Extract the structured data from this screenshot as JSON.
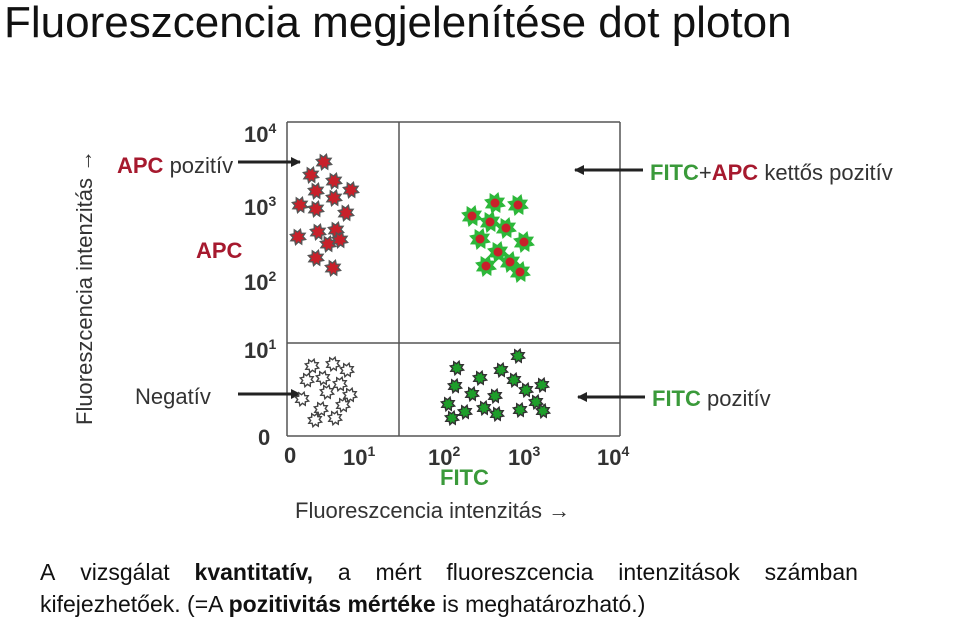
{
  "title": "Fluoreszcencia megjelenítése dot ploton",
  "y_axis_title": "Fluoreszcencia intenzitás →",
  "x_axis_title": "Fluoreszcencia intenzitás →",
  "x_axis_label": "FITC",
  "y_axis_label": "APC",
  "y_ticks": [
    {
      "base": "10",
      "exp": "4"
    },
    {
      "base": "10",
      "exp": "3"
    },
    {
      "base": "10",
      "exp": "2"
    },
    {
      "base": "10",
      "exp": "1"
    },
    {
      "base": "0",
      "exp": ""
    }
  ],
  "x_ticks": [
    {
      "base": "0",
      "exp": ""
    },
    {
      "base": "10",
      "exp": "1"
    },
    {
      "base": "10",
      "exp": "2"
    },
    {
      "base": "10",
      "exp": "3"
    },
    {
      "base": "10",
      "exp": "4"
    }
  ],
  "annotations": {
    "apc_positive": {
      "bold": "APC",
      "rest": " pozitív"
    },
    "negative": "Negatív",
    "double_positive": {
      "fitc": "FITC",
      "plus": "+",
      "apc": "APC",
      "rest": " kettős pozitív"
    },
    "fitc_positive": {
      "bold": "FITC",
      "rest": " pozitív"
    }
  },
  "colors": {
    "apc_red": "#a6192e",
    "fitc_green": "#3a9a3a",
    "dot_red": "#c8202a",
    "dot_green": "#1e9e2a",
    "arrow": "#222222"
  },
  "bottom_text": {
    "line1": [
      "A",
      "vizsgálat",
      "kvantitatív,",
      "a",
      "mért",
      "fluoreszcencia",
      "intenzitások",
      "számban"
    ],
    "line2_a": "kifejezhetőek. (=A ",
    "line2_bold": "pozitivitás mértéke",
    "line2_b": " is meghatározható.)"
  }
}
